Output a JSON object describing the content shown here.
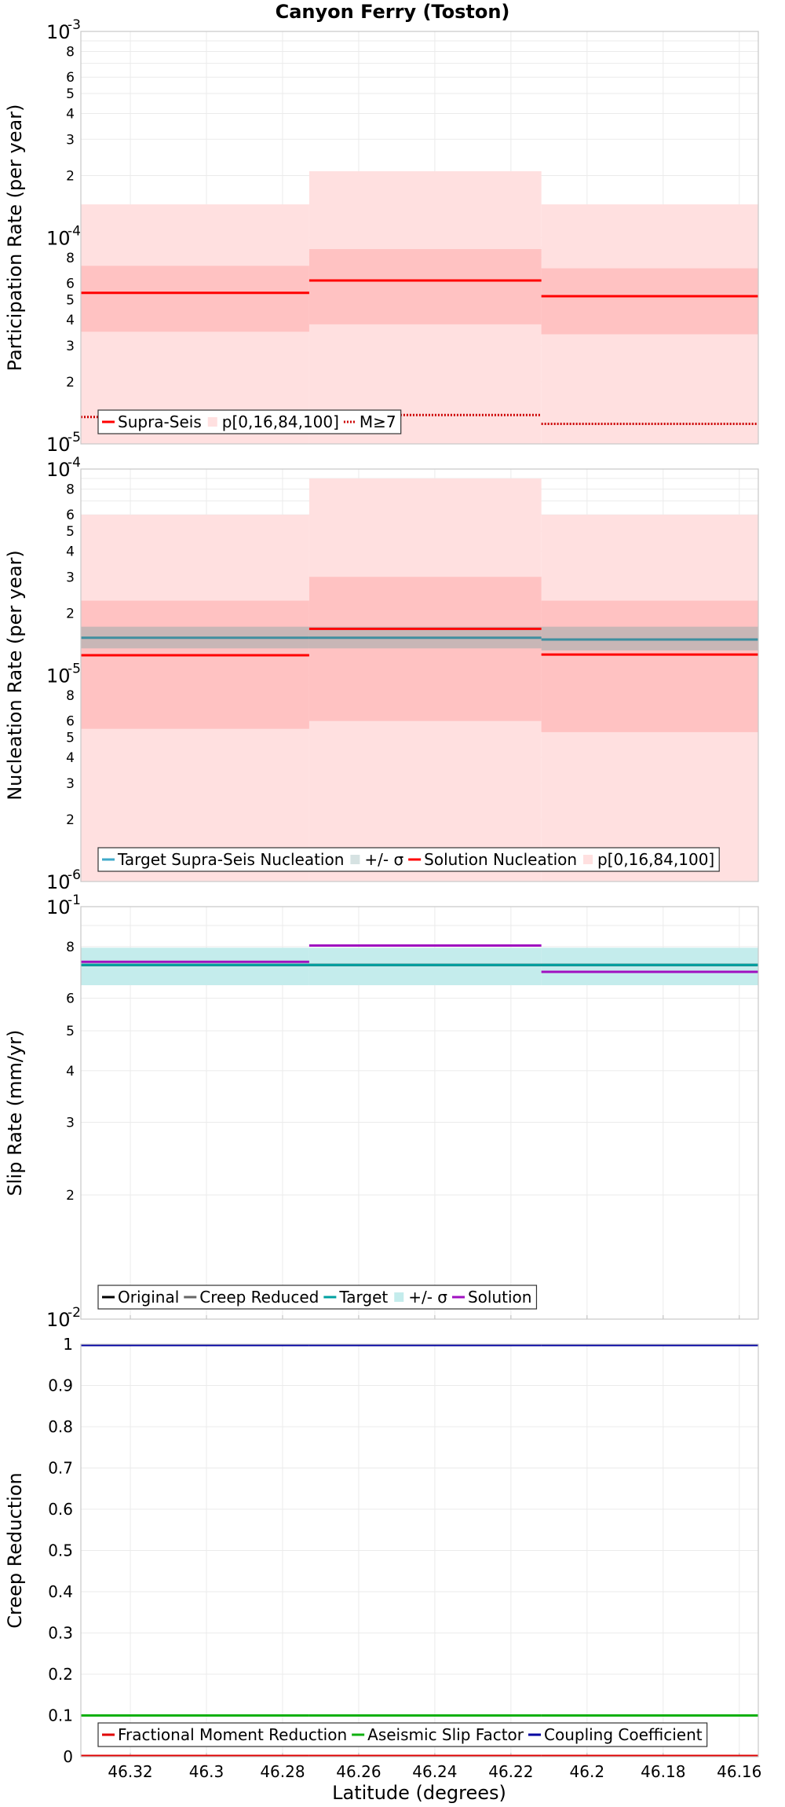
{
  "figure_title": "Canyon Ferry (Toston)",
  "x_axis": {
    "label": "Latitude (degrees)",
    "range": [
      46.333,
      46.155
    ],
    "reversed": true,
    "ticks": [
      46.32,
      46.3,
      46.28,
      46.26,
      46.24,
      46.22,
      46.2,
      46.18,
      46.16
    ],
    "tick_labels": [
      "46.32",
      "46.3",
      "46.28",
      "46.26",
      "46.24",
      "46.22",
      "46.2",
      "46.18",
      "46.16"
    ]
  },
  "segments": [
    [
      46.333,
      46.273
    ],
    [
      46.273,
      46.212
    ],
    [
      46.212,
      46.155
    ]
  ],
  "chart_data": [
    {
      "type": "line",
      "id": "participation",
      "ylabel": "Participation Rate (per year)",
      "yscale": "log",
      "ylim": [
        1e-05,
        0.001
      ],
      "decades": [
        {
          "base": "10",
          "exp": "-5"
        },
        {
          "base": "10",
          "exp": "-4"
        },
        {
          "base": "10",
          "exp": "-3"
        }
      ],
      "bands": [
        {
          "legend": "p0",
          "color": "#ffe0e0",
          "values": [
            [
              1e-05,
              0.000145
            ],
            [
              1e-05,
              0.00021
            ],
            [
              1e-05,
              0.000145
            ]
          ]
        },
        {
          "legend": "p16",
          "color": "#ffc2c2",
          "values": [
            [
              3.5e-05,
              7.3e-05
            ],
            [
              3.8e-05,
              8.8e-05
            ],
            [
              3.4e-05,
              7.1e-05
            ]
          ]
        }
      ],
      "series": [
        {
          "name": "Supra-Seis",
          "color": "#ff0000",
          "style": "solid",
          "values": [
            5.4e-05,
            6.2e-05,
            5.2e-05
          ]
        },
        {
          "name": "M≥7",
          "color": "#cc0000",
          "style": "dotted",
          "values": [
            1.35e-05,
            1.38e-05,
            1.25e-05
          ]
        }
      ],
      "legend": {
        "position": "bottom-left",
        "entries": [
          {
            "label": "Supra-Seis",
            "kind": "line",
            "color": "#ff0000",
            "style": "solid"
          },
          {
            "label": "p[0,16,84,100]",
            "kind": "box",
            "color": "#ffe0e0"
          },
          {
            "label": "M≥7",
            "kind": "line",
            "color": "#cc0000",
            "style": "dotted"
          }
        ]
      }
    },
    {
      "type": "line",
      "id": "nucleation",
      "ylabel": "Nucleation Rate (per year)",
      "yscale": "log",
      "ylim": [
        1e-06,
        0.0001
      ],
      "decades": [
        {
          "base": "10",
          "exp": "-6"
        },
        {
          "base": "10",
          "exp": "-5"
        },
        {
          "base": "10",
          "exp": "-4"
        }
      ],
      "bands": [
        {
          "legend": "p0",
          "color": "#ffe0e0",
          "values": [
            [
              1e-06,
              6e-05
            ],
            [
              1e-06,
              9e-05
            ],
            [
              1e-06,
              6e-05
            ]
          ]
        },
        {
          "legend": "p16",
          "color": "#ffc2c2",
          "values": [
            [
              5.5e-06,
              2.3e-05
            ],
            [
              6e-06,
              3e-05
            ],
            [
              5.3e-06,
              2.3e-05
            ]
          ]
        },
        {
          "legend": "+/- σ",
          "color": "#c8b6b6",
          "values": [
            [
              1.35e-05,
              1.72e-05
            ],
            [
              1.35e-05,
              1.72e-05
            ],
            [
              1.32e-05,
              1.72e-05
            ]
          ]
        }
      ],
      "series": [
        {
          "name": "Target Supra-Seis Nucleation",
          "color": "#3f8f9f",
          "style": "solid",
          "values": [
            1.52e-05,
            1.52e-05,
            1.49e-05
          ]
        },
        {
          "name": "Solution Nucleation",
          "color": "#ff0000",
          "style": "solid",
          "values": [
            1.25e-05,
            1.68e-05,
            1.26e-05
          ]
        }
      ],
      "legend": {
        "position": "bottom-left",
        "entries": [
          {
            "label": "Target Supra-Seis Nucleation",
            "kind": "line",
            "color": "#3fa9c9",
            "style": "solid"
          },
          {
            "label": "+/- σ",
            "kind": "box",
            "color": "#d6e2e2"
          },
          {
            "label": "Solution Nucleation",
            "kind": "line",
            "color": "#ff0000",
            "style": "solid"
          },
          {
            "label": "p[0,16,84,100]",
            "kind": "box",
            "color": "#ffe0e0"
          }
        ]
      }
    },
    {
      "type": "line",
      "id": "slip",
      "ylabel": "Slip Rate (mm/yr)",
      "yscale": "log",
      "ylim": [
        0.01,
        0.1
      ],
      "decades": [
        {
          "base": "10",
          "exp": "-2"
        },
        {
          "base": "10",
          "exp": "-1"
        }
      ],
      "bands": [
        {
          "legend": "+/- σ",
          "color": "#c4ecec",
          "values": [
            [
              0.0645,
              0.0795
            ],
            [
              0.0645,
              0.0795
            ],
            [
              0.0645,
              0.0795
            ]
          ]
        }
      ],
      "series": [
        {
          "name": "Original",
          "color": "#000000",
          "style": "solid",
          "values": [
            0.0722,
            0.0722,
            0.0722
          ]
        },
        {
          "name": "Creep Reduced",
          "color": "#666666",
          "style": "solid",
          "values": [
            0.0722,
            0.0722,
            0.0722
          ]
        },
        {
          "name": "Target",
          "color": "#00a0a0",
          "style": "solid",
          "values": [
            0.0722,
            0.0722,
            0.0722
          ]
        },
        {
          "name": "Solution",
          "color": "#a010c0",
          "style": "solid",
          "values": [
            0.0735,
            0.0805,
            0.0695
          ]
        }
      ],
      "legend": {
        "position": "bottom-left",
        "entries": [
          {
            "label": "Original",
            "kind": "line",
            "color": "#000000",
            "style": "solid"
          },
          {
            "label": "Creep Reduced",
            "kind": "line",
            "color": "#666666",
            "style": "solid"
          },
          {
            "label": "Target",
            "kind": "line",
            "color": "#00a0a0",
            "style": "solid"
          },
          {
            "label": "+/- σ",
            "kind": "box",
            "color": "#c4ecec"
          },
          {
            "label": "Solution",
            "kind": "line",
            "color": "#a010c0",
            "style": "solid"
          }
        ]
      }
    },
    {
      "type": "line",
      "id": "creep",
      "ylabel": "Creep Reduction",
      "yscale": "linear",
      "ylim": [
        0,
        1
      ],
      "yticks": [
        0,
        0.1,
        0.2,
        0.3,
        0.4,
        0.5,
        0.6,
        0.7,
        0.8,
        0.9,
        1
      ],
      "ytick_labels": [
        "0",
        "0.1",
        "0.2",
        "0.3",
        "0.4",
        "0.5",
        "0.6",
        "0.7",
        "0.8",
        "0.9",
        "1"
      ],
      "bands": [],
      "series": [
        {
          "name": "Fractional Moment Reduction",
          "color": "#e00000",
          "style": "solid",
          "values": [
            0,
            0,
            0
          ]
        },
        {
          "name": "Aseismic Slip Factor",
          "color": "#10b010",
          "style": "solid",
          "values": [
            0.1,
            0.1,
            0.1
          ]
        },
        {
          "name": "Coupling Coefficient",
          "color": "#0000a0",
          "style": "solid",
          "values": [
            1,
            1,
            1
          ]
        }
      ],
      "legend": {
        "position": "bottom-left",
        "entries": [
          {
            "label": "Fractional Moment Reduction",
            "kind": "line",
            "color": "#e00000",
            "style": "solid"
          },
          {
            "label": "Aseismic Slip Factor",
            "kind": "line",
            "color": "#10b010",
            "style": "solid"
          },
          {
            "label": "Coupling Coefficient",
            "kind": "line",
            "color": "#0000a0",
            "style": "solid"
          }
        ]
      }
    }
  ]
}
